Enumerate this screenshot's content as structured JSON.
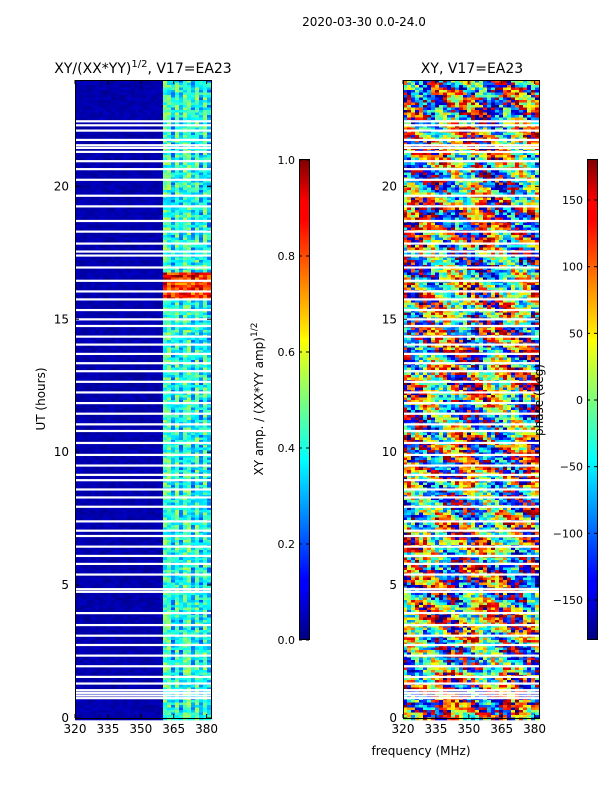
{
  "chart_data": [
    {
      "type": "heatmap",
      "figure_title": "2020-03-30 0.0-24.0",
      "title_main": "XY/(XX*YY)",
      "title_sup": "1/2",
      "title_suffix": ", V17=EA23",
      "xlabel": "",
      "ylabel": "UT (hours)",
      "xlim": [
        320,
        382
      ],
      "ylim": [
        0,
        24
      ],
      "x_ticks": [
        320,
        335,
        350,
        365,
        380
      ],
      "y_ticks": [
        0,
        5,
        10,
        15,
        20
      ],
      "colormap": "jet",
      "colorbar": {
        "label_main": "XY amp. / (XX*YY amp)",
        "label_sup": "1/2",
        "range": [
          0.0,
          1.0
        ],
        "ticks": [
          "0.0",
          "0.2",
          "0.4",
          "0.6",
          "0.8",
          "1.0"
        ],
        "tick_values": [
          0.0,
          0.2,
          0.4,
          0.6,
          0.8,
          1.0
        ]
      },
      "blank_rows_ut": [
        0.75,
        0.85,
        0.95,
        1.05,
        1.3,
        1.55,
        1.95,
        2.35,
        2.75,
        3.1,
        3.5,
        3.95,
        4.75,
        4.85,
        5.4,
        5.8,
        6.1,
        6.45,
        6.85,
        7.05,
        7.4,
        7.95,
        8.3,
        8.6,
        8.95,
        9.15,
        9.5,
        9.9,
        10.35,
        10.8,
        11.05,
        11.45,
        11.85,
        12.25,
        12.65,
        13.05,
        13.35,
        13.7,
        14.05,
        14.35,
        14.75,
        15.0,
        15.35,
        15.75,
        16.05,
        16.45,
        16.95,
        17.4,
        17.55,
        17.85,
        18.3,
        18.7,
        19.25,
        19.65,
        20.25,
        20.65,
        20.95,
        21.3,
        21.45,
        21.55,
        21.75,
        22.1,
        22.3,
        22.45
      ],
      "high_amplitude_band": {
        "x_range": [
          360,
          382
        ],
        "ut_range": [
          15.7,
          16.8
        ]
      }
    },
    {
      "type": "heatmap",
      "title_main": "XY, V17=EA23",
      "xlabel": "frequency (MHz)",
      "ylabel": "",
      "xlim": [
        320,
        382
      ],
      "ylim": [
        0,
        24
      ],
      "x_ticks": [
        320,
        335,
        350,
        365,
        380
      ],
      "y_ticks": [
        0,
        5,
        10,
        15,
        20
      ],
      "colormap": "jet",
      "colorbar": {
        "label_main": "phase (deg)",
        "range": [
          -180,
          180
        ],
        "ticks": [
          "−150",
          "−100",
          "−50",
          "0",
          "50",
          "100",
          "150"
        ],
        "tick_values": [
          -150,
          -100,
          -50,
          0,
          50,
          100,
          150
        ]
      },
      "blank_rows_ut": [
        0.75,
        0.85,
        0.95,
        1.05,
        1.3,
        1.55,
        1.95,
        2.35,
        2.75,
        3.1,
        3.5,
        3.95,
        4.75,
        4.85,
        5.4,
        5.8,
        6.1,
        6.45,
        6.85,
        7.05,
        7.4,
        7.95,
        8.3,
        8.6,
        8.95,
        9.15,
        9.5,
        9.9,
        10.35,
        10.8,
        11.05,
        11.45,
        11.85,
        12.25,
        12.65,
        13.05,
        13.35,
        13.7,
        14.05,
        14.35,
        14.75,
        15.0,
        15.35,
        15.75,
        16.05,
        16.45,
        16.95,
        17.4,
        17.55,
        17.85,
        18.3,
        18.7,
        19.25,
        19.65,
        20.25,
        20.65,
        20.95,
        21.3,
        21.45,
        21.55,
        21.75,
        22.1,
        22.3,
        22.45
      ]
    }
  ]
}
